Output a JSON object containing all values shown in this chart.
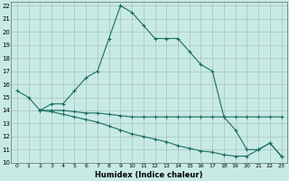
{
  "xlabel": "Humidex (Indice chaleur)",
  "background_color": "#c8eae4",
  "grid_color": "#b0c8c4",
  "line_color": "#1a6e64",
  "xlim": [
    -0.5,
    23.5
  ],
  "ylim": [
    10,
    22.3
  ],
  "yticks": [
    10,
    11,
    12,
    13,
    14,
    15,
    16,
    17,
    18,
    19,
    20,
    21,
    22
  ],
  "xticks": [
    0,
    1,
    2,
    3,
    4,
    5,
    6,
    7,
    8,
    9,
    10,
    11,
    12,
    13,
    14,
    15,
    16,
    17,
    18,
    19,
    20,
    21,
    22,
    23
  ],
  "series1_x": [
    0,
    1,
    2,
    3,
    4,
    5,
    6,
    7,
    8,
    9,
    10,
    11,
    12,
    13,
    14,
    15,
    16,
    17,
    18,
    19,
    20,
    21,
    22,
    23
  ],
  "series1_y": [
    15.5,
    15.0,
    14.0,
    14.5,
    14.5,
    15.5,
    16.5,
    17.0,
    19.5,
    22.0,
    21.5,
    20.5,
    19.5,
    19.5,
    19.5,
    18.5,
    17.5,
    17.0,
    13.5,
    12.5,
    11.0,
    11.0,
    11.5,
    10.5
  ],
  "series2_x": [
    2,
    3,
    4,
    5,
    6,
    7,
    8,
    9,
    10,
    11,
    12,
    13,
    14,
    15,
    16,
    17,
    18,
    19,
    20,
    21,
    22,
    23
  ],
  "series2_y": [
    14.0,
    14.0,
    14.0,
    13.9,
    13.8,
    13.8,
    13.7,
    13.6,
    13.5,
    13.5,
    13.5,
    13.5,
    13.5,
    13.5,
    13.5,
    13.5,
    13.5,
    13.5,
    13.5,
    13.5,
    13.5,
    13.5
  ],
  "series3_x": [
    2,
    3,
    4,
    5,
    6,
    7,
    8,
    9,
    10,
    11,
    12,
    13,
    14,
    15,
    16,
    17,
    18,
    19,
    20,
    21,
    22,
    23
  ],
  "series3_y": [
    14.0,
    13.9,
    13.7,
    13.5,
    13.3,
    13.1,
    12.8,
    12.5,
    12.2,
    12.0,
    11.8,
    11.6,
    11.3,
    11.1,
    10.9,
    10.8,
    10.6,
    10.5,
    10.5,
    11.0,
    11.5,
    10.5
  ]
}
